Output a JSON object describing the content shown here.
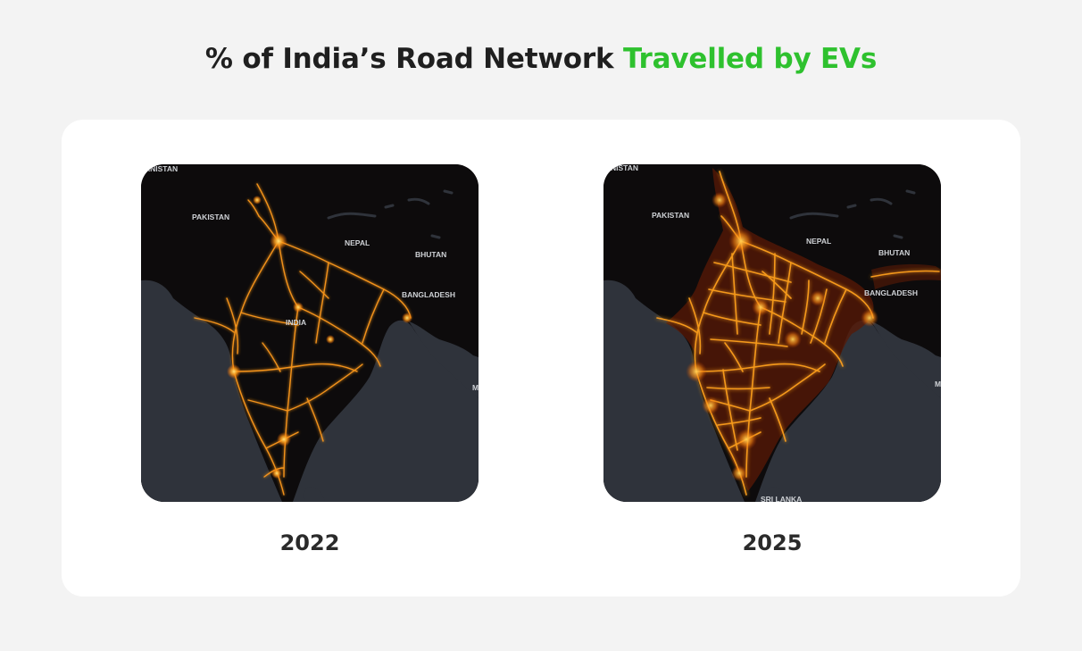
{
  "title": {
    "prefix": "% of India’s Road Network ",
    "accent": "Travelled by EVs"
  },
  "colors": {
    "accent": "#2ec12e",
    "land": "#0d0b0c",
    "water": "#2f333b",
    "glow": "#ff9a1a"
  },
  "maps": [
    {
      "year": "2022",
      "labels": {
        "afghanistan": "ANISTAN",
        "pakistan": "PAKISTAN",
        "nepal": "NEPAL",
        "bhutan": "BHUTAN",
        "bangladesh": "BANGLADESH",
        "india": "INDIA",
        "myanmar": "M"
      }
    },
    {
      "year": "2025",
      "labels": {
        "afghanistan": "NISTAN",
        "pakistan": "PAKISTAN",
        "nepal": "NEPAL",
        "bhutan": "BHUTAN",
        "bangladesh": "BANGLADESH",
        "srilanka": "SRI LANKA",
        "myanmar": "M"
      }
    }
  ]
}
